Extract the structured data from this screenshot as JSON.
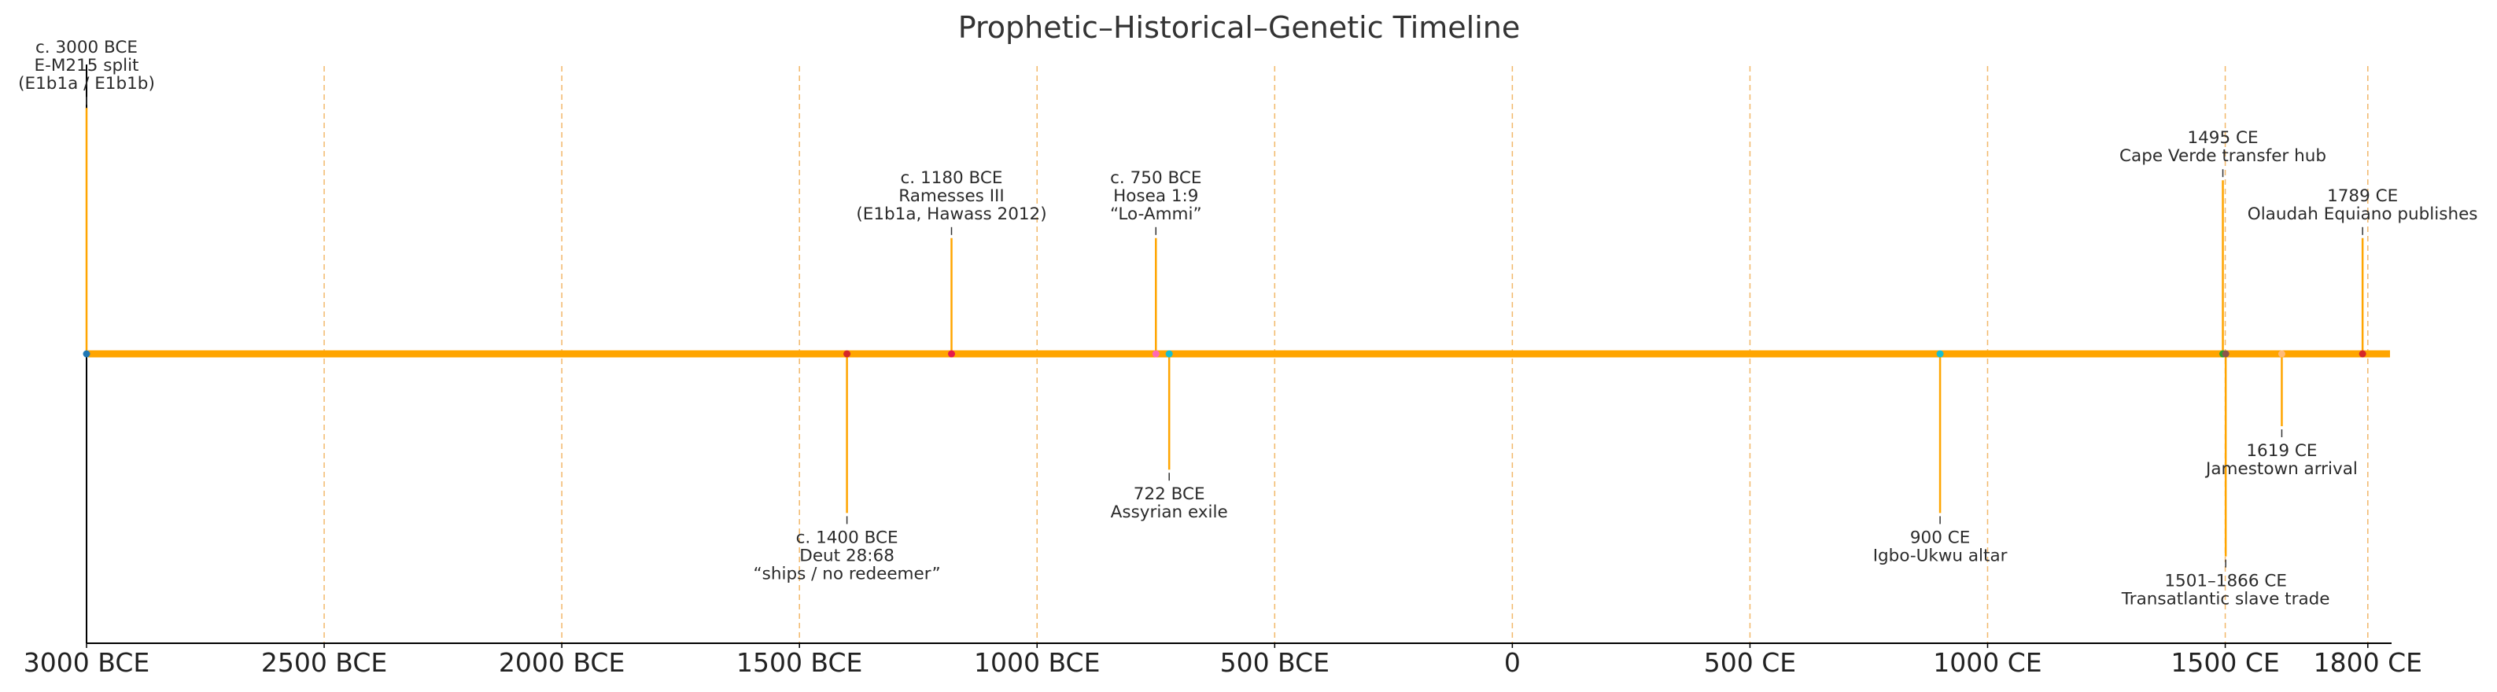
{
  "chart_data": {
    "type": "timeline",
    "title": "Prophetic–Historical–Genetic Timeline",
    "xlim": [
      -3000,
      1850
    ],
    "x_ticks": [
      {
        "value": -3000,
        "label": "3000 BCE"
      },
      {
        "value": -2500,
        "label": "2500 BCE"
      },
      {
        "value": -2000,
        "label": "2000 BCE"
      },
      {
        "value": -1500,
        "label": "1500 BCE"
      },
      {
        "value": -1000,
        "label": "1000 BCE"
      },
      {
        "value": -500,
        "label": "500 BCE"
      },
      {
        "value": 0,
        "label": "0"
      },
      {
        "value": 500,
        "label": "500 CE"
      },
      {
        "value": 1000,
        "label": "1000 CE"
      },
      {
        "value": 1500,
        "label": "1500 CE"
      },
      {
        "value": 1800,
        "label": "1800 CE"
      }
    ],
    "grid": "vertical dashed at ticks",
    "line_color": "#ffa500",
    "events": [
      {
        "year": -3000,
        "side": "top",
        "level": 0.85,
        "color": "#1f77b4",
        "lines": [
          "c. 3000 BCE",
          "E-M215 split",
          "(E1b1a / E1b1b)"
        ]
      },
      {
        "year": -1400,
        "side": "bottom",
        "level": 0.55,
        "color": "#d62728",
        "lines": [
          "c. 1400 BCE",
          "Deut 28:68",
          "“ships / no redeemer”"
        ]
      },
      {
        "year": -1180,
        "side": "top",
        "level": 0.4,
        "color": "#e6194b",
        "lines": [
          "c. 1180 BCE",
          "Ramesses III",
          "(E1b1a, Hawass 2012)"
        ]
      },
      {
        "year": -750,
        "side": "top",
        "level": 0.4,
        "color": "#ff69b4",
        "lines": [
          "c. 750 BCE",
          "Hosea 1:9",
          "“Lo-Ammi”"
        ]
      },
      {
        "year": -722,
        "side": "bottom",
        "level": 0.4,
        "color": "#17becf",
        "lines": [
          "722 BCE",
          "Assyrian exile"
        ]
      },
      {
        "year": 900,
        "side": "bottom",
        "level": 0.55,
        "color": "#17becf",
        "lines": [
          "900 CE",
          "Igbo-Ukwu altar"
        ]
      },
      {
        "year": 1495,
        "side": "top",
        "level": 0.6,
        "color": "#2ca02c",
        "lines": [
          "1495 CE",
          "Cape Verde transfer hub"
        ]
      },
      {
        "year": 1501,
        "side": "bottom",
        "level": 0.7,
        "color": "#8c564b",
        "lines": [
          "1501–1866 CE",
          "Transatlantic slave trade"
        ]
      },
      {
        "year": 1619,
        "side": "bottom",
        "level": 0.25,
        "color": "#ffbb78",
        "lines": [
          "1619 CE",
          "Jamestown arrival"
        ]
      },
      {
        "year": 1789,
        "side": "top",
        "level": 0.4,
        "color": "#d62728",
        "lines": [
          "1789 CE",
          "Olaudah Equiano publishes"
        ]
      }
    ]
  }
}
